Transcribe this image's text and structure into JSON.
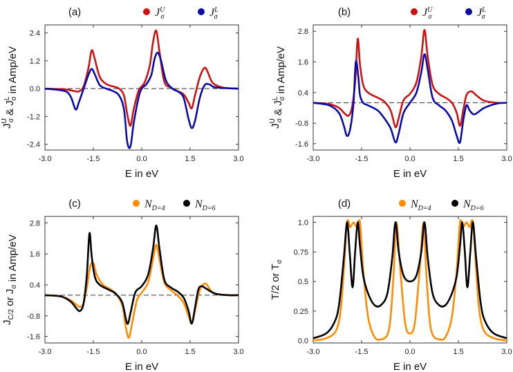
{
  "colors": {
    "red": "#cc1111",
    "blue": "#0a0aa8",
    "orange": "#ff8c00",
    "black": "#000000"
  },
  "chart_data": [
    {
      "panel": "(a)",
      "type": "line",
      "xlabel": "E in eV",
      "ylabel": "J^U_σ & J^L_σ in Amp/eV",
      "xlim": [
        -3.0,
        3.0
      ],
      "ylim": [
        -2.65,
        2.75
      ],
      "xticks": [
        "-3.0",
        "-1.5",
        "0.0",
        "1.5",
        "3.0"
      ],
      "xtick_values": [
        -3.0,
        -1.5,
        0.0,
        1.5,
        3.0
      ],
      "yticks": [
        "2.4",
        "1.2",
        "0.0",
        "-1.2",
        "-2.4"
      ],
      "ytick_values": [
        2.4,
        1.2,
        0.0,
        -1.2,
        -2.4
      ],
      "zero_line": true,
      "legend_position": "top",
      "series": [
        {
          "name": "J^U_σ",
          "color": "#cc1111",
          "x": [
            -3.0,
            -2.4,
            -2.1,
            -1.95,
            -1.8,
            -1.65,
            -1.55,
            -1.45,
            -1.3,
            -1.1,
            -0.9,
            -0.7,
            -0.55,
            -0.45,
            -0.35,
            -0.25,
            -0.1,
            0.0,
            0.1,
            0.25,
            0.35,
            0.45,
            0.55,
            0.7,
            0.9,
            1.1,
            1.3,
            1.45,
            1.55,
            1.65,
            1.8,
            1.95,
            2.05,
            2.2,
            2.5,
            3.0
          ],
          "y": [
            0.0,
            -0.03,
            -0.1,
            -0.12,
            0.1,
            0.9,
            1.65,
            1.25,
            0.5,
            0.2,
            0.1,
            0.0,
            -0.3,
            -1.1,
            -1.6,
            -0.9,
            -0.1,
            0.1,
            0.3,
            1.0,
            2.0,
            2.5,
            1.6,
            0.3,
            0.05,
            -0.1,
            -0.25,
            -0.6,
            -0.85,
            -0.3,
            0.5,
            0.9,
            0.7,
            0.25,
            0.05,
            0.0
          ]
        },
        {
          "name": "J^L_σ",
          "color": "#0a0aa8",
          "x": [
            -3.0,
            -2.4,
            -2.2,
            -2.05,
            -1.95,
            -1.8,
            -1.65,
            -1.55,
            -1.45,
            -1.3,
            -1.1,
            -0.9,
            -0.7,
            -0.55,
            -0.45,
            -0.35,
            -0.25,
            -0.1,
            0.0,
            0.15,
            0.3,
            0.4,
            0.5,
            0.6,
            0.75,
            0.95,
            1.15,
            1.3,
            1.45,
            1.55,
            1.65,
            1.8,
            1.95,
            2.1,
            2.3,
            3.0
          ],
          "y": [
            0.0,
            -0.1,
            -0.35,
            -0.9,
            -0.6,
            0.0,
            0.6,
            0.85,
            0.6,
            0.15,
            0.0,
            -0.1,
            -0.3,
            -0.9,
            -2.3,
            -2.5,
            -1.5,
            -0.4,
            0.0,
            0.2,
            0.6,
            1.3,
            1.55,
            1.2,
            0.35,
            0.0,
            -0.15,
            -0.4,
            -1.3,
            -1.7,
            -1.4,
            -0.4,
            0.15,
            0.18,
            0.05,
            0.0
          ]
        }
      ]
    },
    {
      "panel": "(b)",
      "type": "line",
      "xlabel": "E in eV",
      "ylabel": "J^U_σ & J^L_σ in Amp/eV",
      "xlim": [
        -3.0,
        3.0
      ],
      "ylim": [
        -1.85,
        3.05
      ],
      "xticks": [
        "-3.0",
        "-1.5",
        "0.0",
        "1.5",
        "3.0"
      ],
      "xtick_values": [
        -3.0,
        -1.5,
        0.0,
        1.5,
        3.0
      ],
      "yticks": [
        "2.8",
        "1.6",
        "0.4",
        "-0.8",
        "-1.6"
      ],
      "ytick_values": [
        2.8,
        1.6,
        0.4,
        -0.8,
        -1.6
      ],
      "zero_line": true,
      "legend_position": "top",
      "series": [
        {
          "name": "J^U_σ",
          "color": "#cc1111",
          "x": [
            -3.0,
            -2.5,
            -2.2,
            -2.0,
            -1.9,
            -1.8,
            -1.7,
            -1.62,
            -1.55,
            -1.45,
            -1.3,
            -1.0,
            -0.8,
            -0.6,
            -0.45,
            -0.35,
            -0.2,
            0.0,
            0.2,
            0.35,
            0.45,
            0.55,
            0.7,
            0.9,
            1.1,
            1.3,
            1.45,
            1.55,
            1.65,
            1.75,
            1.9,
            2.05,
            2.3,
            2.7,
            3.0
          ],
          "y": [
            0.0,
            -0.05,
            -0.2,
            -0.45,
            -0.5,
            -0.2,
            0.8,
            2.5,
            1.5,
            0.7,
            0.4,
            0.2,
            0.05,
            -0.3,
            -0.95,
            -0.6,
            0.1,
            0.35,
            0.8,
            1.8,
            2.85,
            1.8,
            0.7,
            0.35,
            0.2,
            0.0,
            -0.4,
            -0.9,
            -0.3,
            0.3,
            0.45,
            0.3,
            0.08,
            0.0,
            0.0
          ]
        },
        {
          "name": "J^L_σ",
          "color": "#0a0aa8",
          "x": [
            -3.0,
            -2.5,
            -2.2,
            -2.05,
            -1.95,
            -1.85,
            -1.75,
            -1.68,
            -1.6,
            -1.55,
            -1.45,
            -1.3,
            -1.0,
            -0.8,
            -0.6,
            -0.45,
            -0.35,
            -0.2,
            0.0,
            0.2,
            0.35,
            0.45,
            0.55,
            0.7,
            0.9,
            1.1,
            1.3,
            1.45,
            1.55,
            1.65,
            1.75,
            1.85,
            2.0,
            2.3,
            2.7,
            3.0
          ],
          "y": [
            0.0,
            -0.1,
            -0.4,
            -0.9,
            -1.3,
            -1.0,
            0.0,
            1.6,
            1.0,
            0.3,
            0.0,
            -0.1,
            -0.3,
            -0.6,
            -1.0,
            -1.55,
            -1.2,
            -0.4,
            0.0,
            0.4,
            1.2,
            1.9,
            1.3,
            0.2,
            -0.1,
            -0.3,
            -0.7,
            -1.3,
            -1.55,
            -0.7,
            -0.1,
            -0.3,
            -0.45,
            -0.2,
            -0.03,
            0.0
          ]
        }
      ]
    },
    {
      "panel": "(c)",
      "type": "line",
      "xlabel": "E in eV",
      "ylabel": "J_C/2 or J_σ in Amp/eV",
      "xlim": [
        -3.0,
        3.0
      ],
      "ylim": [
        -1.85,
        3.05
      ],
      "xticks": [
        "-3.0",
        "-1.5",
        "0.0",
        "1.5",
        "3.0"
      ],
      "xtick_values": [
        -3.0,
        -1.5,
        0.0,
        1.5,
        3.0
      ],
      "yticks": [
        "2.8",
        "1.6",
        "0.4",
        "-0.8",
        "-1.6"
      ],
      "ytick_values": [
        2.8,
        1.6,
        0.4,
        -0.8,
        -1.6
      ],
      "zero_line": true,
      "legend_position": "top",
      "series": [
        {
          "name": "N_D=4",
          "color": "#ff8c00",
          "x": [
            -3.0,
            -2.5,
            -2.2,
            -2.0,
            -1.9,
            -1.8,
            -1.7,
            -1.6,
            -1.5,
            -1.4,
            -1.2,
            -1.0,
            -0.8,
            -0.6,
            -0.5,
            -0.4,
            -0.3,
            -0.15,
            0.0,
            0.2,
            0.35,
            0.45,
            0.55,
            0.7,
            0.9,
            1.1,
            1.3,
            1.45,
            1.55,
            1.65,
            1.8,
            1.95,
            2.05,
            2.2,
            2.5,
            3.0
          ],
          "y": [
            0.0,
            -0.05,
            -0.2,
            -0.4,
            -0.45,
            -0.3,
            0.3,
            1.1,
            1.25,
            0.8,
            0.4,
            0.25,
            0.05,
            -0.4,
            -1.2,
            -1.65,
            -1.1,
            -0.2,
            0.1,
            0.5,
            1.4,
            1.95,
            1.4,
            0.5,
            0.2,
            0.0,
            -0.3,
            -0.8,
            -1.1,
            -0.6,
            0.2,
            0.45,
            0.35,
            0.1,
            0.02,
            0.0
          ]
        },
        {
          "name": "N_D=6",
          "color": "#000000",
          "x": [
            -3.0,
            -2.5,
            -2.2,
            -2.0,
            -1.9,
            -1.8,
            -1.7,
            -1.62,
            -1.55,
            -1.45,
            -1.3,
            -1.0,
            -0.8,
            -0.6,
            -0.45,
            -0.35,
            -0.2,
            0.0,
            0.2,
            0.35,
            0.45,
            0.55,
            0.7,
            0.9,
            1.1,
            1.3,
            1.45,
            1.55,
            1.65,
            1.75,
            1.85,
            2.0,
            2.3,
            2.7,
            3.0
          ],
          "y": [
            0.0,
            -0.05,
            -0.25,
            -0.55,
            -0.6,
            -0.3,
            0.8,
            2.4,
            1.5,
            0.7,
            0.4,
            0.2,
            0.05,
            -0.3,
            -1.1,
            -0.7,
            0.1,
            0.35,
            0.8,
            1.8,
            2.7,
            1.8,
            0.6,
            0.3,
            0.15,
            -0.1,
            -0.6,
            -1.1,
            -0.5,
            0.2,
            0.35,
            0.25,
            0.05,
            0.0,
            0.0
          ]
        }
      ]
    },
    {
      "panel": "(d)",
      "type": "line",
      "xlabel": "E in eV",
      "ylabel": "T/2 or T_σ",
      "xlim": [
        -3.0,
        3.0
      ],
      "ylim": [
        -0.02,
        1.05
      ],
      "xticks": [
        "-3.0",
        "-1.5",
        "0.0",
        "1.5",
        "3.0"
      ],
      "xtick_values": [
        -3.0,
        -1.5,
        0.0,
        1.5,
        3.0
      ],
      "yticks": [
        "1.0",
        "0.75",
        "0.5",
        "0.25",
        "0.0"
      ],
      "ytick_values": [
        1.0,
        0.75,
        0.5,
        0.25,
        0.0
      ],
      "zero_line": false,
      "legend_position": "top",
      "series": [
        {
          "name": "N_D=4",
          "color": "#ff8c00",
          "x": [
            -3.0,
            -2.6,
            -2.3,
            -2.15,
            -2.05,
            -1.95,
            -1.85,
            -1.75,
            -1.65,
            -1.55,
            -1.45,
            -1.3,
            -1.1,
            -0.9,
            -0.7,
            -0.6,
            -0.5,
            -0.42,
            -0.3,
            -0.15,
            0.0,
            0.15,
            0.3,
            0.42,
            0.5,
            0.6,
            0.7,
            0.9,
            1.1,
            1.3,
            1.45,
            1.55,
            1.65,
            1.75,
            1.85,
            1.95,
            2.05,
            2.15,
            2.3,
            2.6,
            3.0
          ],
          "y": [
            0.0,
            0.02,
            0.08,
            0.25,
            0.6,
            1.0,
            0.96,
            1.0,
            0.96,
            1.0,
            0.6,
            0.2,
            0.03,
            0.01,
            0.05,
            0.2,
            0.6,
            1.0,
            0.6,
            0.15,
            0.06,
            0.15,
            0.6,
            1.0,
            0.6,
            0.2,
            0.05,
            0.01,
            0.03,
            0.2,
            0.6,
            1.0,
            0.96,
            1.0,
            0.96,
            1.0,
            0.6,
            0.25,
            0.08,
            0.02,
            0.0
          ]
        },
        {
          "name": "N_D=6",
          "color": "#000000",
          "x": [
            -3.0,
            -2.6,
            -2.35,
            -2.2,
            -2.05,
            -1.95,
            -1.87,
            -1.78,
            -1.7,
            -1.62,
            -1.55,
            -1.45,
            -1.3,
            -1.1,
            -0.9,
            -0.7,
            -0.55,
            -0.45,
            -0.35,
            -0.2,
            0.0,
            0.2,
            0.35,
            0.45,
            0.55,
            0.7,
            0.9,
            1.1,
            1.3,
            1.45,
            1.55,
            1.62,
            1.7,
            1.78,
            1.87,
            1.95,
            2.05,
            2.2,
            2.35,
            2.6,
            3.0
          ],
          "y": [
            0.02,
            0.06,
            0.15,
            0.3,
            0.7,
            1.0,
            0.75,
            0.45,
            0.75,
            1.0,
            0.8,
            0.55,
            0.4,
            0.3,
            0.3,
            0.4,
            0.7,
            1.0,
            0.75,
            0.55,
            0.5,
            0.55,
            0.75,
            1.0,
            0.7,
            0.4,
            0.3,
            0.3,
            0.4,
            0.55,
            0.8,
            1.0,
            0.75,
            0.45,
            0.75,
            1.0,
            0.7,
            0.3,
            0.15,
            0.06,
            0.02
          ]
        }
      ]
    }
  ]
}
